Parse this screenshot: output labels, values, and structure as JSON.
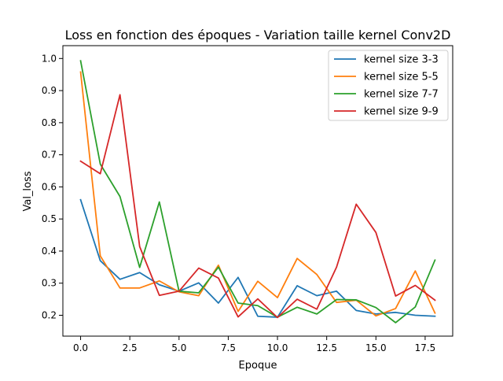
{
  "chart_data": {
    "type": "line",
    "title": "Loss en fonction des époques - Variation taille kernel Conv2D",
    "xlabel": "Epoque",
    "ylabel": "Val_loss",
    "xlim": [
      -0.9,
      18.9
    ],
    "ylim": [
      0.135,
      1.04
    ],
    "x_ticks": [
      0.0,
      2.5,
      5.0,
      7.5,
      10.0,
      12.5,
      15.0,
      17.5
    ],
    "x_tick_labels": [
      "0.0",
      "2.5",
      "5.0",
      "7.5",
      "10.0",
      "12.5",
      "15.0",
      "17.5"
    ],
    "y_ticks": [
      0.2,
      0.3,
      0.4,
      0.5,
      0.6,
      0.7,
      0.8,
      0.9,
      1.0
    ],
    "y_tick_labels": [
      "0.2",
      "0.3",
      "0.4",
      "0.5",
      "0.6",
      "0.7",
      "0.8",
      "0.9",
      "1.0"
    ],
    "grid": false,
    "legend_position": "top-right",
    "x": [
      0,
      1,
      2,
      3,
      4,
      5,
      6,
      7,
      8,
      9,
      10,
      11,
      12,
      13,
      14,
      15,
      16,
      17,
      18
    ],
    "series": [
      {
        "name": "kernel size 3-3",
        "color": "#1f77b4",
        "values": [
          0.56,
          0.37,
          0.312,
          0.333,
          0.295,
          0.275,
          0.301,
          0.238,
          0.318,
          0.197,
          0.194,
          0.292,
          0.261,
          0.275,
          0.215,
          0.204,
          0.209,
          0.2,
          0.197
        ]
      },
      {
        "name": "kernel size 5-5",
        "color": "#ff7f0e",
        "values": [
          0.958,
          0.385,
          0.285,
          0.285,
          0.307,
          0.273,
          0.261,
          0.356,
          0.212,
          0.306,
          0.255,
          0.377,
          0.327,
          0.24,
          0.247,
          0.198,
          0.221,
          0.338,
          0.207
        ]
      },
      {
        "name": "kernel size 7-7",
        "color": "#2ca02c",
        "values": [
          0.993,
          0.671,
          0.57,
          0.349,
          0.553,
          0.275,
          0.27,
          0.35,
          0.238,
          0.23,
          0.194,
          0.225,
          0.204,
          0.249,
          0.248,
          0.224,
          0.177,
          0.226,
          0.372
        ]
      },
      {
        "name": "kernel size 9-9",
        "color": "#d62728",
        "values": [
          0.68,
          0.641,
          0.887,
          0.414,
          0.262,
          0.275,
          0.347,
          0.316,
          0.195,
          0.251,
          0.193,
          0.25,
          0.219,
          0.35,
          0.546,
          0.458,
          0.26,
          0.293,
          0.247
        ]
      }
    ]
  }
}
